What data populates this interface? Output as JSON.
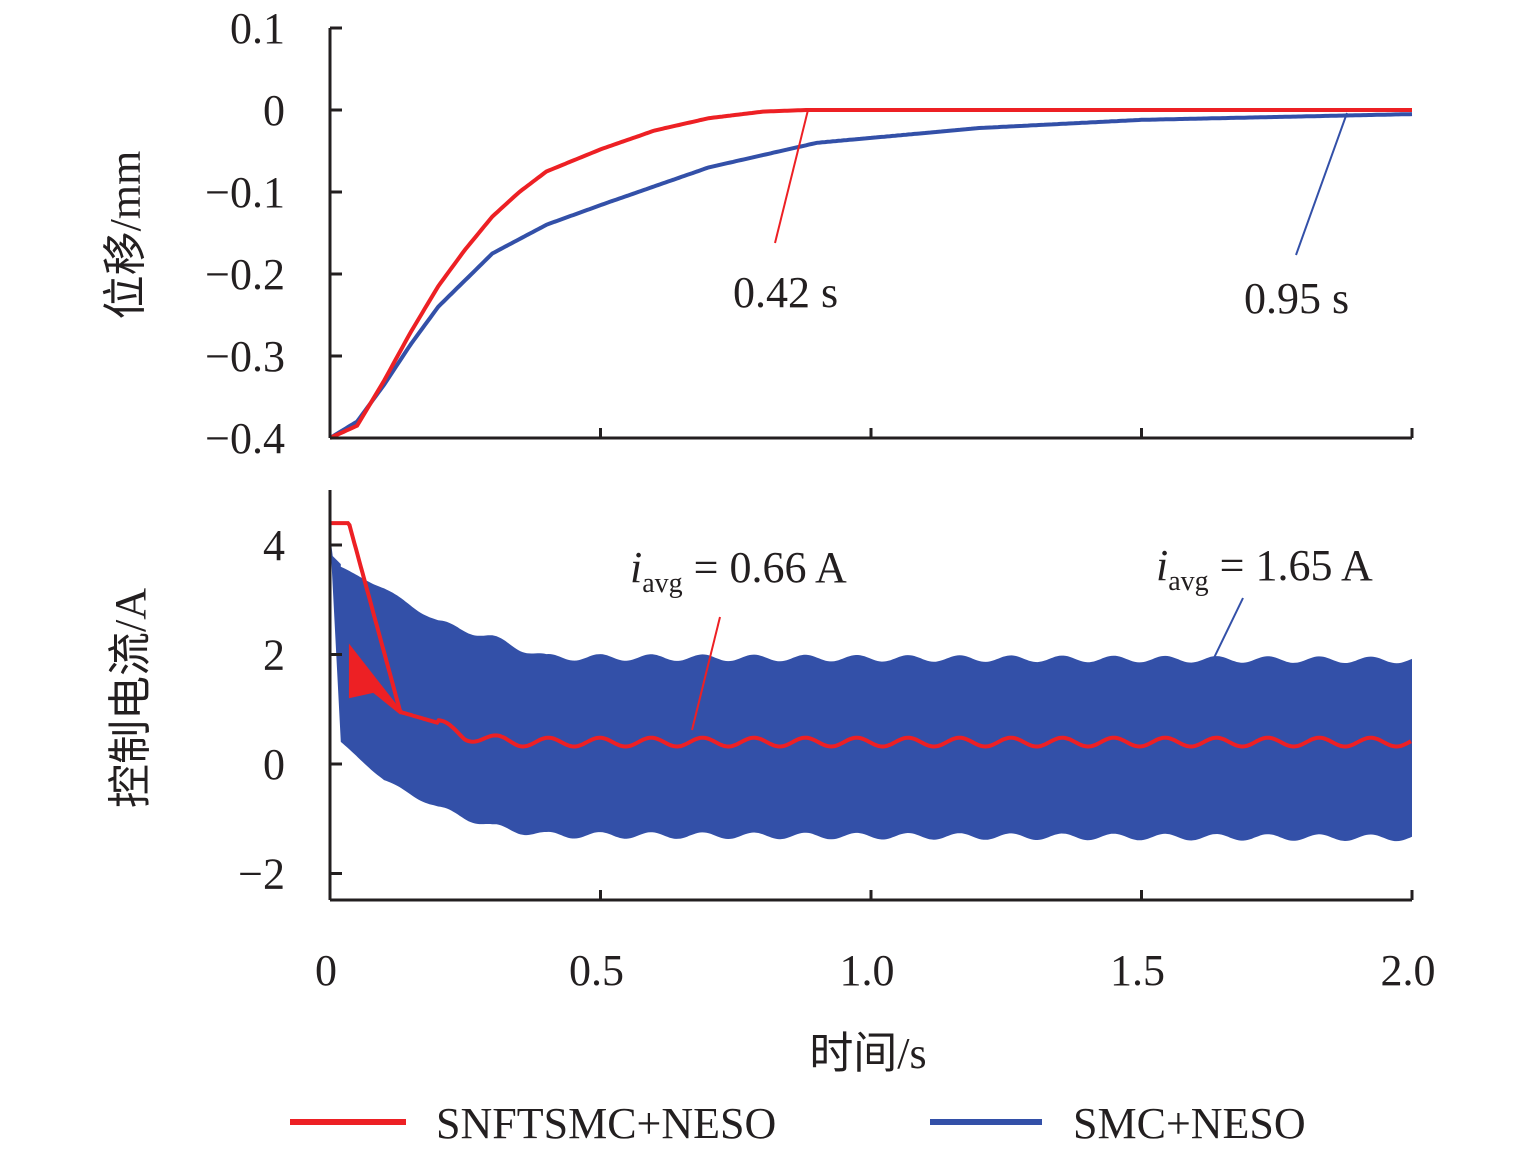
{
  "colors": {
    "snftsmc": "#ED2024",
    "smc": "#3350A8",
    "axis": "#231F20"
  },
  "chart_data": [
    {
      "type": "line",
      "ylabel": "位移/mm",
      "xlim": [
        0,
        2.0
      ],
      "ylim": [
        -0.4,
        0.1
      ],
      "yticks": [
        "0.1",
        "0",
        "−0.1",
        "−0.2",
        "−0.3",
        "−0.4"
      ],
      "ytick_values": [
        0.1,
        0,
        -0.1,
        -0.2,
        -0.3,
        -0.4
      ],
      "series": [
        {
          "name": "SNFTSMC+NESO",
          "x": [
            0,
            0.05,
            0.1,
            0.15,
            0.2,
            0.25,
            0.3,
            0.35,
            0.4,
            0.5,
            0.6,
            0.7,
            0.8,
            0.88,
            2.0
          ],
          "y": [
            -0.4,
            -0.385,
            -0.33,
            -0.27,
            -0.215,
            -0.17,
            -0.13,
            -0.1,
            -0.075,
            -0.048,
            -0.025,
            -0.01,
            -0.002,
            0,
            0
          ]
        },
        {
          "name": "SMC+NESO",
          "x": [
            0,
            0.05,
            0.1,
            0.15,
            0.2,
            0.3,
            0.4,
            0.5,
            0.7,
            0.9,
            1.2,
            1.5,
            2.0
          ],
          "y": [
            -0.4,
            -0.38,
            -0.335,
            -0.285,
            -0.24,
            -0.175,
            -0.14,
            -0.116,
            -0.07,
            -0.04,
            -0.022,
            -0.012,
            -0.005
          ]
        }
      ],
      "annotations": [
        {
          "text": "0.42 s",
          "series": "SNFTSMC+NESO",
          "at": [
            0.88,
            0
          ]
        },
        {
          "text": "0.95 s",
          "series": "SMC+NESO",
          "at": [
            1.88,
            -0.003
          ]
        }
      ]
    },
    {
      "type": "area",
      "xlabel": "时间/s",
      "ylabel": "控制电流/A",
      "xlim": [
        0,
        2.0
      ],
      "ylim": [
        -2.5,
        5
      ],
      "xticks": [
        "0",
        "0.5",
        "1.0",
        "1.5",
        "2.0"
      ],
      "xtick_values": [
        0,
        0.5,
        1.0,
        1.5,
        2.0
      ],
      "yticks": [
        "4",
        "2",
        "0",
        "−2"
      ],
      "ytick_values": [
        4,
        2,
        0,
        -2
      ],
      "series": [
        {
          "name": "SMC+NESO",
          "kind": "band",
          "x": [
            0.02,
            0.1,
            0.2,
            0.3,
            0.4,
            2.0
          ],
          "upper": [
            3.6,
            3.2,
            2.6,
            2.3,
            1.95,
            1.9
          ],
          "lower": [
            0.4,
            -0.3,
            -0.8,
            -1.15,
            -1.3,
            -1.35
          ],
          "oscillation_amplitude": 0.06,
          "oscillation_period": 0.095
        },
        {
          "name": "SNFTSMC+NESO",
          "kind": "line",
          "x": [
            0,
            0.035,
            0.13,
            0.2,
            0.25,
            0.35,
            2.0
          ],
          "y": [
            4.4,
            4.4,
            0.95,
            0.75,
            0.5,
            0.4,
            0.4
          ],
          "chatter_band": {
            "x": [
              0.035,
              0.13
            ],
            "upper": [
              2.2,
              1.0
            ],
            "lower": [
              1.2,
              0.9
            ]
          },
          "oscillation_amplitude": 0.08,
          "oscillation_period": 0.095
        }
      ],
      "annotations": [
        {
          "var": "i",
          "sub": "avg",
          "text": " = 0.66 A",
          "series": "SNFTSMC+NESO",
          "at": [
            0.68,
            0.5
          ]
        },
        {
          "var": "i",
          "sub": "avg",
          "text": " = 1.65 A",
          "series": "SMC+NESO",
          "at": [
            1.63,
            1.9
          ]
        }
      ]
    }
  ],
  "legend": [
    {
      "label": "SNFTSMC+NESO"
    },
    {
      "label": "SMC+NESO"
    }
  ]
}
